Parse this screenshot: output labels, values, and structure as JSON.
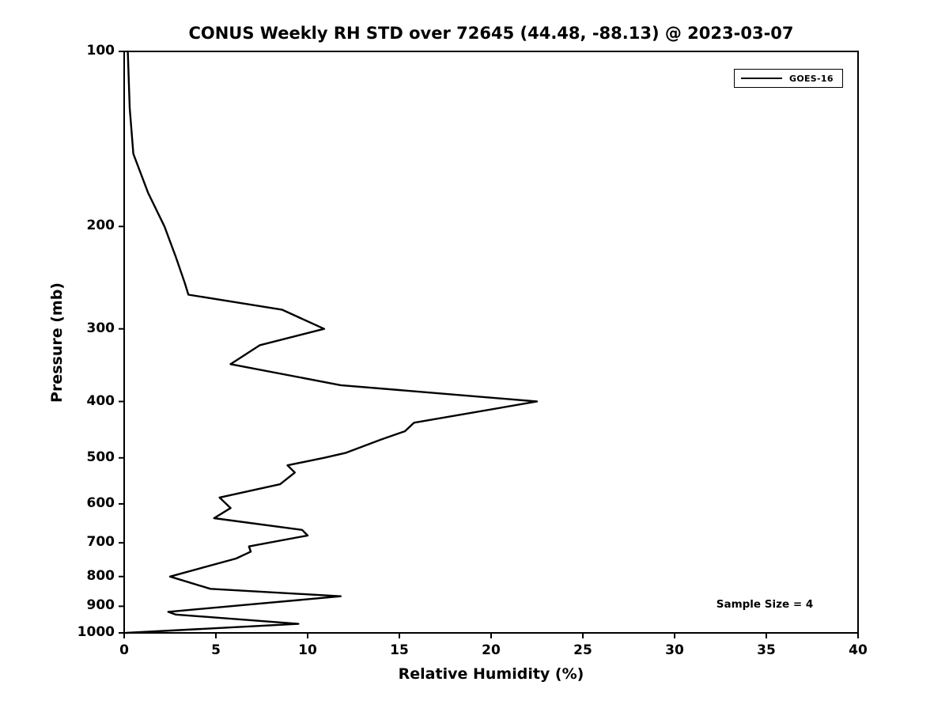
{
  "chart_data": {
    "type": "line",
    "title": "CONUS Weekly RH STD over 72645 (44.48, -88.13) @ 2023-03-07",
    "xlabel": "Relative Humidity (%)",
    "ylabel": "Pressure (mb)",
    "xlim": [
      0,
      40
    ],
    "ylim": [
      100,
      1000
    ],
    "y_scale": "log",
    "y_inverted": true,
    "grid": false,
    "legend_position": "upper right",
    "x_ticks": [
      0,
      5,
      10,
      15,
      20,
      25,
      30,
      35,
      40
    ],
    "y_ticks": [
      100,
      200,
      300,
      400,
      500,
      600,
      700,
      800,
      900,
      1000
    ],
    "series": [
      {
        "name": "GOES-16",
        "color": "#000000",
        "pressure_mb": [
          100,
          125,
          150,
          175,
          200,
          225,
          250,
          262,
          278,
          300,
          320,
          345,
          375,
          400,
          435,
          450,
          465,
          490,
          500,
          515,
          530,
          555,
          585,
          610,
          635,
          665,
          680,
          710,
          725,
          745,
          800,
          840,
          865,
          920,
          930,
          965,
          1000
        ],
        "rh_std_percent": [
          0.2,
          0.3,
          0.5,
          1.3,
          2.2,
          2.8,
          3.3,
          3.5,
          8.6,
          10.9,
          7.4,
          5.8,
          11.8,
          22.5,
          15.8,
          15.3,
          14.0,
          12.1,
          10.9,
          8.9,
          9.3,
          8.5,
          5.2,
          5.8,
          4.9,
          9.7,
          10.0,
          6.8,
          6.9,
          6.1,
          2.5,
          4.7,
          11.8,
          2.4,
          2.8,
          9.5,
          0.1
        ]
      }
    ]
  },
  "legend": {
    "items": [
      {
        "label": "GOES-16",
        "color": "#000000"
      }
    ]
  },
  "annotation": {
    "text": "Sample Size = 4"
  }
}
